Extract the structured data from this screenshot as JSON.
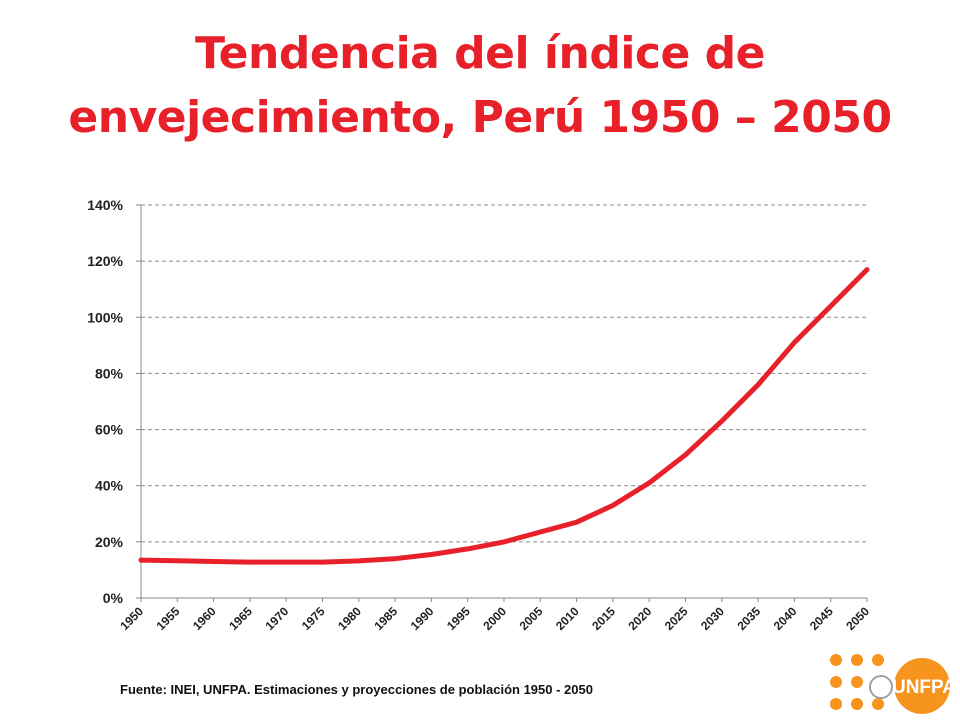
{
  "title": {
    "line1": "Tendencia del índice de",
    "line2": "envejecimiento, Perú 1950 – 2050"
  },
  "source": "Fuente: INEI, UNFPA. Estimaciones y proyecciones de población 1950 - 2050",
  "logo": {
    "text": "UNFPA",
    "icon": "un-emblem-icon",
    "dot_color": "#f7941d"
  },
  "colors": {
    "title": "#e8202a",
    "line": "#e8202a",
    "grid": "#8c8c8c"
  },
  "chart_data": {
    "type": "line",
    "title": "",
    "xlabel": "",
    "ylabel": "",
    "ylim": [
      0,
      1.4
    ],
    "y_ticks": [
      0,
      0.2,
      0.4,
      0.6,
      0.8,
      1.0,
      1.2,
      1.4
    ],
    "y_tick_labels": [
      "0%",
      "20%",
      "40%",
      "60%",
      "80%",
      "100%",
      "120%",
      "140%"
    ],
    "x_tick_labels": [
      "1950",
      "1955",
      "1960",
      "1965",
      "1970",
      "1975",
      "1980",
      "1985",
      "1990",
      "1995",
      "2000",
      "2005",
      "2010",
      "2015",
      "2020",
      "2025",
      "2030",
      "2035",
      "2040",
      "2045",
      "2050"
    ],
    "grid": "horizontal dashed",
    "series": [
      {
        "x": [
          1950,
          1955,
          1960,
          1965,
          1970,
          1975,
          1980,
          1985,
          1990,
          1995,
          2000,
          2005,
          2010,
          2015,
          2020,
          2025,
          2030,
          2035,
          2040,
          2045,
          2050
        ],
        "values": [
          0.135,
          0.133,
          0.13,
          0.128,
          0.128,
          0.128,
          0.132,
          0.14,
          0.155,
          0.175,
          0.2,
          0.235,
          0.27,
          0.33,
          0.41,
          0.51,
          0.63,
          0.76,
          0.91,
          1.04,
          1.17
        ]
      }
    ]
  }
}
